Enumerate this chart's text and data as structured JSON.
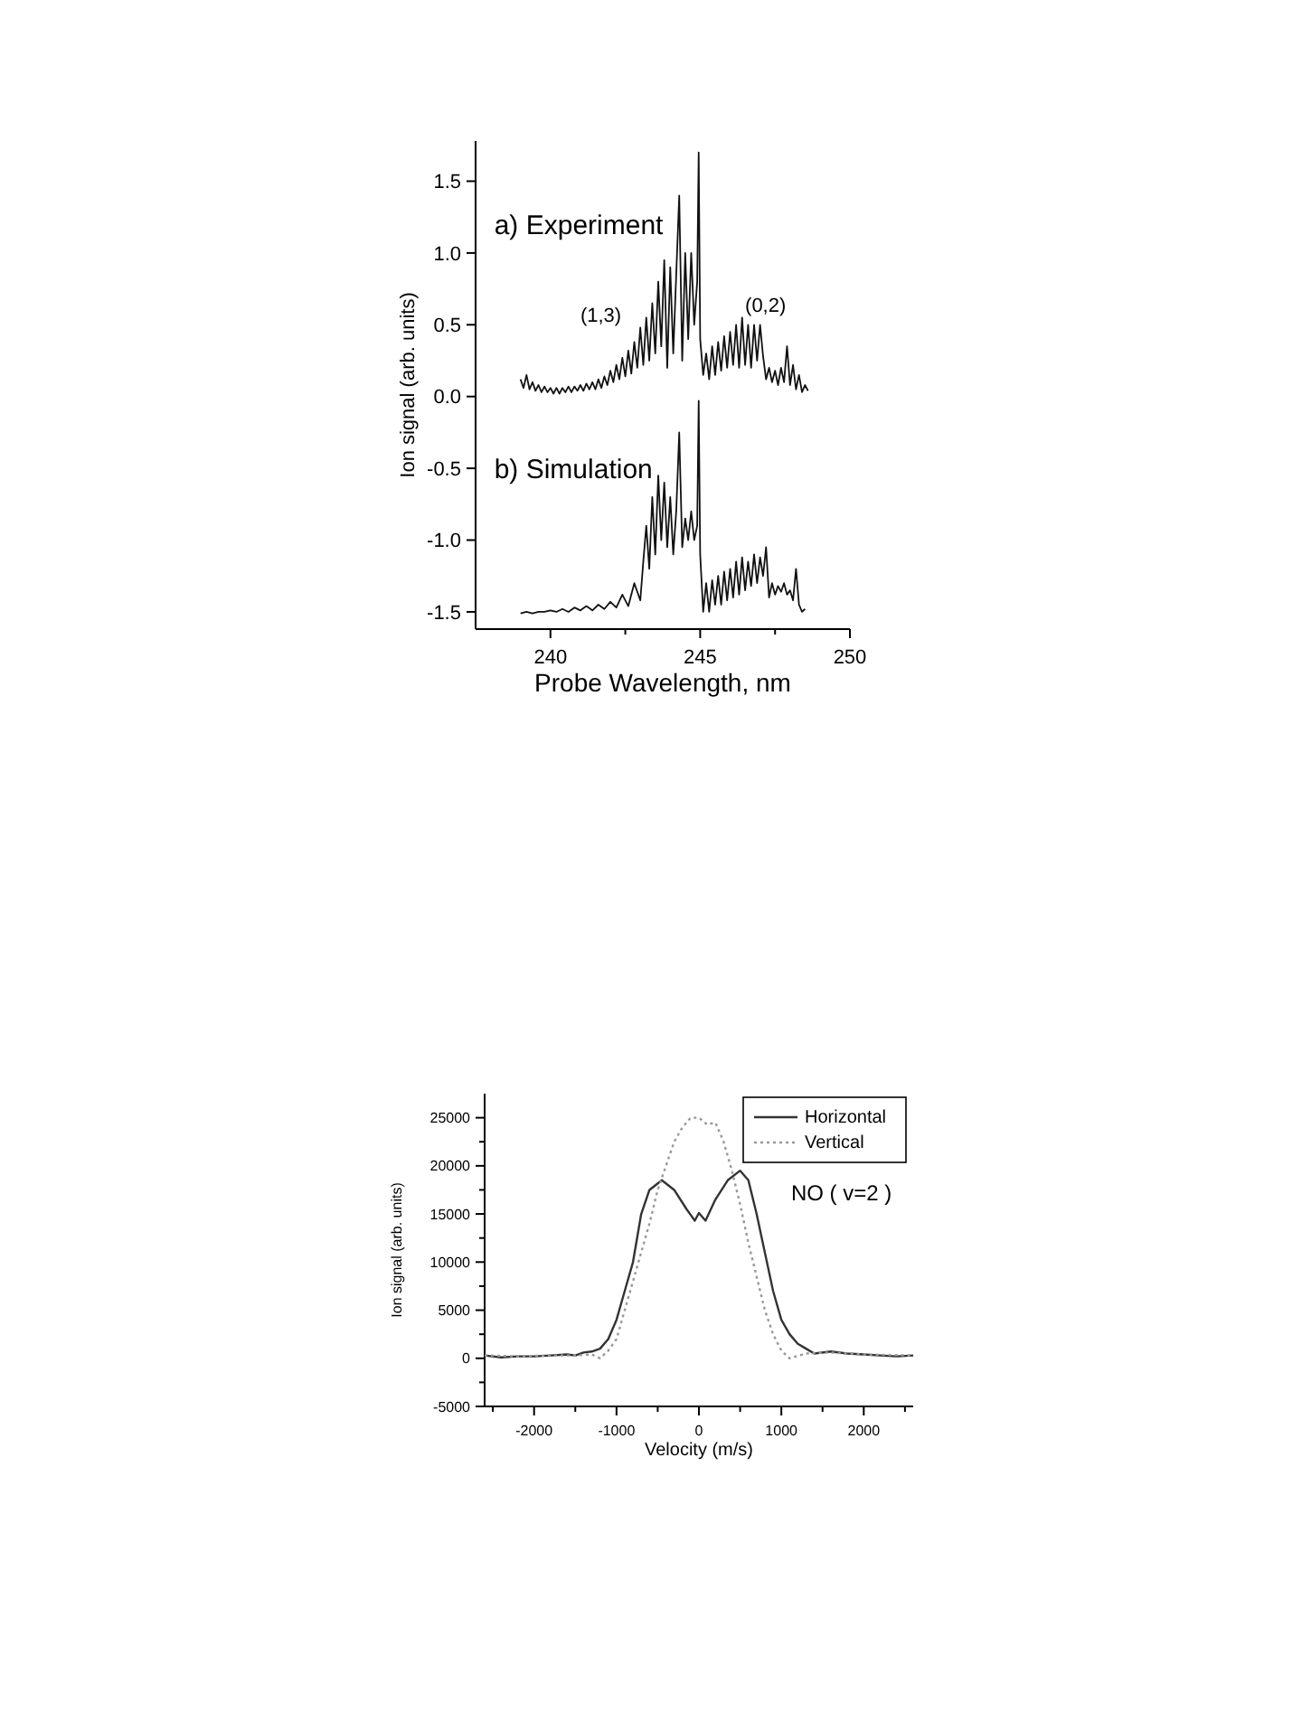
{
  "chart_data": [
    {
      "type": "line",
      "xlabel": "Probe Wavelength, nm",
      "ylabel": "Ion signal (arb. units)",
      "xlim": [
        237.5,
        250
      ],
      "xticks": [
        240,
        {
          "value": 242.5,
          "label": null
        },
        245,
        {
          "value": 247.5,
          "label": null
        },
        250
      ],
      "ylim": [
        -1.62,
        1.78
      ],
      "yticks": [
        -1.5,
        {
          "value": -1,
          "label": "-1.0"
        },
        -0.5,
        {
          "value": 0,
          "label": "0.0"
        },
        0.5,
        {
          "value": 1,
          "label": "1.0"
        },
        1.5
      ],
      "series": [
        {
          "color": "#111111",
          "x": [
            239.0,
            239.1,
            239.2,
            239.3,
            239.4,
            239.5,
            239.6,
            239.7,
            239.8,
            239.9,
            240.0,
            240.1,
            240.2,
            240.3,
            240.4,
            240.5,
            240.6,
            240.7,
            240.8,
            240.9,
            241.0,
            241.1,
            241.2,
            241.3,
            241.4,
            241.5,
            241.6,
            241.7,
            241.8,
            241.9,
            242.0,
            242.1,
            242.2,
            242.3,
            242.4,
            242.5,
            242.6,
            242.7,
            242.8,
            242.9,
            243.0,
            243.1,
            243.2,
            243.3,
            243.4,
            243.5,
            243.6,
            243.7,
            243.8,
            243.9,
            244.0,
            244.1,
            244.2,
            244.3,
            244.4,
            244.5,
            244.6,
            244.7,
            244.8,
            244.9,
            244.95,
            245.0,
            245.1,
            245.2,
            245.3,
            245.4,
            245.5,
            245.6,
            245.7,
            245.8,
            245.9,
            246.0,
            246.1,
            246.2,
            246.3,
            246.4,
            246.5,
            246.6,
            246.7,
            246.8,
            246.9,
            247.0,
            247.1,
            247.2,
            247.3,
            247.4,
            247.5,
            247.6,
            247.7,
            247.8,
            247.9,
            248.0,
            248.1,
            248.2,
            248.3,
            248.4,
            248.5,
            248.6
          ],
          "values": [
            0.12,
            0.06,
            0.15,
            0.05,
            0.1,
            0.04,
            0.08,
            0.03,
            0.07,
            0.03,
            0.06,
            0.02,
            0.06,
            0.02,
            0.06,
            0.03,
            0.07,
            0.03,
            0.07,
            0.04,
            0.08,
            0.04,
            0.09,
            0.05,
            0.1,
            0.05,
            0.12,
            0.06,
            0.14,
            0.08,
            0.18,
            0.1,
            0.22,
            0.12,
            0.27,
            0.14,
            0.32,
            0.16,
            0.38,
            0.2,
            0.48,
            0.22,
            0.55,
            0.25,
            0.65,
            0.3,
            0.8,
            0.35,
            0.95,
            0.2,
            0.9,
            0.3,
            0.85,
            1.4,
            0.25,
            1.0,
            0.4,
            1.0,
            0.5,
            0.8,
            1.7,
            0.4,
            0.15,
            0.3,
            0.12,
            0.35,
            0.15,
            0.38,
            0.18,
            0.42,
            0.2,
            0.45,
            0.22,
            0.5,
            0.2,
            0.55,
            0.22,
            0.5,
            0.2,
            0.5,
            0.25,
            0.5,
            0.28,
            0.12,
            0.2,
            0.1,
            0.18,
            0.08,
            0.2,
            0.1,
            0.35,
            0.08,
            0.22,
            0.05,
            0.15,
            0.03,
            0.08,
            0.04
          ]
        },
        {
          "color": "#111111",
          "x": [
            239.0,
            239.2,
            239.4,
            239.6,
            239.8,
            240.0,
            240.2,
            240.4,
            240.6,
            240.8,
            241.0,
            241.2,
            241.4,
            241.6,
            241.8,
            242.0,
            242.2,
            242.4,
            242.6,
            242.8,
            243.0,
            243.1,
            243.2,
            243.3,
            243.4,
            243.5,
            243.6,
            243.7,
            243.8,
            243.9,
            244.0,
            244.1,
            244.2,
            244.3,
            244.4,
            244.5,
            244.6,
            244.7,
            244.8,
            244.9,
            244.95,
            245.0,
            245.1,
            245.2,
            245.3,
            245.4,
            245.5,
            245.6,
            245.7,
            245.8,
            245.9,
            246.0,
            246.1,
            246.2,
            246.3,
            246.4,
            246.5,
            246.6,
            246.7,
            246.8,
            246.9,
            247.0,
            247.1,
            247.2,
            247.3,
            247.4,
            247.5,
            247.6,
            247.7,
            247.8,
            247.9,
            248.0,
            248.1,
            248.2,
            248.3,
            248.4,
            248.5
          ],
          "values": [
            -1.51,
            -1.5,
            -1.51,
            -1.5,
            -1.5,
            -1.49,
            -1.5,
            -1.48,
            -1.5,
            -1.47,
            -1.49,
            -1.46,
            -1.49,
            -1.45,
            -1.48,
            -1.43,
            -1.47,
            -1.38,
            -1.46,
            -1.3,
            -1.42,
            -1.15,
            -0.9,
            -1.2,
            -0.7,
            -1.1,
            -0.55,
            -1.0,
            -0.6,
            -1.05,
            -0.7,
            -1.1,
            -0.8,
            -0.25,
            -1.05,
            -0.85,
            -1.0,
            -0.8,
            -1.0,
            -0.9,
            -0.03,
            -1.1,
            -1.5,
            -1.3,
            -1.5,
            -1.28,
            -1.45,
            -1.25,
            -1.45,
            -1.22,
            -1.42,
            -1.2,
            -1.4,
            -1.15,
            -1.38,
            -1.12,
            -1.35,
            -1.15,
            -1.32,
            -1.1,
            -1.3,
            -1.12,
            -1.25,
            -1.05,
            -1.4,
            -1.3,
            -1.38,
            -1.32,
            -1.36,
            -1.3,
            -1.38,
            -1.35,
            -1.42,
            -1.2,
            -1.45,
            -1.5,
            -1.48
          ]
        }
      ],
      "annotations": [
        "a) Experiment",
        "(1,3)",
        "(0,2)",
        "b) Simulation"
      ]
    },
    {
      "type": "line",
      "xlabel": "Velocity (m/s)",
      "ylabel": "Ion signal (arb. units)",
      "xlim": [
        -2600,
        2600
      ],
      "xticks": [
        {
          "value": -2500,
          "label": null
        },
        -2000,
        {
          "value": -1500,
          "label": null
        },
        -1000,
        {
          "value": -500,
          "label": null
        },
        0,
        {
          "value": 500,
          "label": null
        },
        1000,
        {
          "value": 1500,
          "label": null
        },
        2000,
        {
          "value": 2500,
          "label": null
        }
      ],
      "ylim": [
        -5000,
        27500
      ],
      "yticks": [
        -5000,
        {
          "value": -2500,
          "label": null
        },
        0,
        {
          "value": 2500,
          "label": null
        },
        5000,
        {
          "value": 7500,
          "label": null
        },
        10000,
        {
          "value": 12500,
          "label": null
        },
        15000,
        {
          "value": 17500,
          "label": null
        },
        20000,
        {
          "value": 22500,
          "label": null
        },
        25000
      ],
      "legend": "top right",
      "series": [
        {
          "name": "Horizontal",
          "color": "#333333",
          "line_style": "solid",
          "x": [
            -2600,
            -2400,
            -2200,
            -2000,
            -1800,
            -1600,
            -1500,
            -1400,
            -1300,
            -1200,
            -1100,
            -1000,
            -900,
            -800,
            -700,
            -600,
            -450,
            -300,
            -150,
            -50,
            0,
            80,
            200,
            350,
            500,
            600,
            700,
            800,
            900,
            1000,
            1100,
            1200,
            1300,
            1400,
            1600,
            1800,
            2000,
            2200,
            2400,
            2600
          ],
          "values": [
            300,
            100,
            200,
            200,
            300,
            400,
            300,
            600,
            700,
            1000,
            2000,
            4000,
            7000,
            10000,
            15000,
            17500,
            18500,
            17500,
            15500,
            14300,
            15100,
            14300,
            16500,
            18500,
            19500,
            18500,
            15000,
            11000,
            7000,
            4000,
            2500,
            1500,
            1000,
            500,
            700,
            500,
            400,
            300,
            200,
            300
          ]
        },
        {
          "name": "Vertical",
          "color": "#999999",
          "line_style": "dotted",
          "x": [
            -2600,
            -2200,
            -1800,
            -1500,
            -1300,
            -1200,
            -1100,
            -1000,
            -900,
            -800,
            -700,
            -600,
            -500,
            -400,
            -300,
            -200,
            -100,
            0,
            100,
            200,
            300,
            400,
            500,
            600,
            700,
            800,
            900,
            1000,
            1100,
            1300,
            1600,
            2000,
            2600
          ],
          "values": [
            300,
            200,
            300,
            300,
            400,
            0,
            800,
            2000,
            5000,
            8000,
            11000,
            14000,
            17500,
            20000,
            22500,
            24000,
            25000,
            25000,
            24300,
            24500,
            22500,
            19500,
            16000,
            12000,
            8500,
            5000,
            2500,
            800,
            0,
            500,
            600,
            400,
            300
          ]
        }
      ],
      "annotations": [
        "NO ( v=2 )"
      ]
    }
  ]
}
